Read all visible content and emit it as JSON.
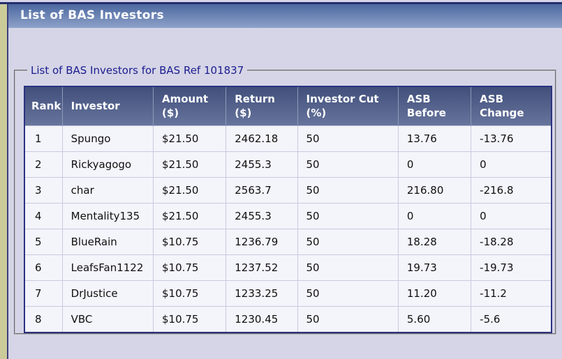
{
  "header": {
    "title": "List of BAS Investors"
  },
  "colors": {
    "titlebar_gradient_top": "#46639c",
    "titlebar_gradient_bottom": "#8ea2c9",
    "page_background": "#d5d5e7",
    "left_strip": "#cbcb9a",
    "table_border": "#2c3280",
    "table_header_gradient_top": "#414f7b",
    "table_header_gradient_bottom": "#67759d",
    "row_background": "#f4f4fb",
    "legend_text": "#1b1b8e"
  },
  "fieldset": {
    "legend": "List of BAS Investors for BAS Ref 101837"
  },
  "table": {
    "columns": [
      "Rank",
      "Investor",
      "Amount\n($)",
      "Return\n($)",
      "Investor Cut\n(%)",
      "ASB\nBefore",
      "ASB\nChange"
    ],
    "fields": [
      "rank",
      "investor",
      "amount",
      "return",
      "cut",
      "asb_before",
      "asb_change"
    ],
    "rows": [
      {
        "rank": "1",
        "investor": "Spungo",
        "amount": "$21.50",
        "return": "2462.18",
        "cut": "50",
        "asb_before": "13.76",
        "asb_change": "-13.76"
      },
      {
        "rank": "2",
        "investor": "Rickyagogo",
        "amount": "$21.50",
        "return": "2455.3",
        "cut": "50",
        "asb_before": "0",
        "asb_change": "0"
      },
      {
        "rank": "3",
        "investor": "char",
        "amount": "$21.50",
        "return": "2563.7",
        "cut": "50",
        "asb_before": "216.80",
        "asb_change": "-216.8"
      },
      {
        "rank": "4",
        "investor": "Mentality135",
        "amount": "$21.50",
        "return": "2455.3",
        "cut": "50",
        "asb_before": "0",
        "asb_change": "0"
      },
      {
        "rank": "5",
        "investor": "BlueRain",
        "amount": "$10.75",
        "return": "1236.79",
        "cut": "50",
        "asb_before": "18.28",
        "asb_change": "-18.28"
      },
      {
        "rank": "6",
        "investor": "LeafsFan1122",
        "amount": "$10.75",
        "return": "1237.52",
        "cut": "50",
        "asb_before": "19.73",
        "asb_change": "-19.73"
      },
      {
        "rank": "7",
        "investor": "DrJustice",
        "amount": "$10.75",
        "return": "1233.25",
        "cut": "50",
        "asb_before": "11.20",
        "asb_change": "-11.2"
      },
      {
        "rank": "8",
        "investor": "VBC",
        "amount": "$10.75",
        "return": "1230.45",
        "cut": "50",
        "asb_before": "5.60",
        "asb_change": "-5.6"
      }
    ]
  }
}
